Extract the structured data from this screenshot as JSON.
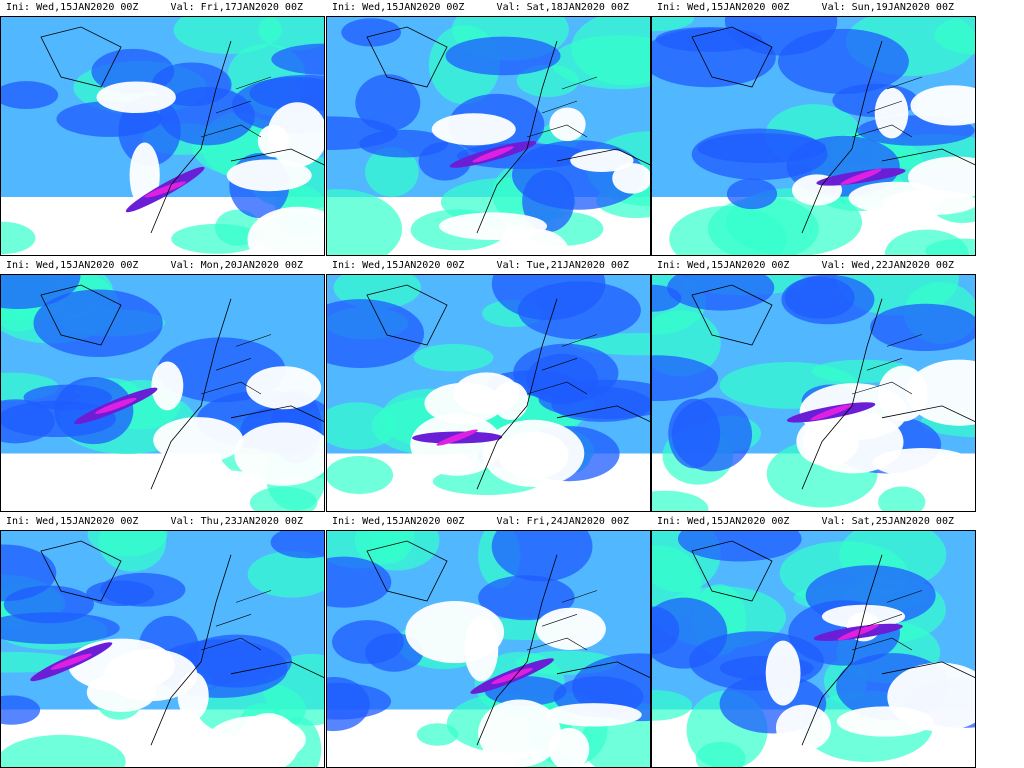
{
  "panels": [
    {
      "ini": "Ini: Wed,15JAN2020 00Z",
      "val": "Val: Fri,17JAN2020 00Z"
    },
    {
      "ini": "Ini: Wed,15JAN2020 00Z",
      "val": "Val: Sat,18JAN2020 00Z"
    },
    {
      "ini": "Ini: Wed,15JAN2020 00Z",
      "val": "Val: Sun,19JAN2020 00Z"
    },
    {
      "ini": "Ini: Wed,15JAN2020 00Z",
      "val": "Val: Mon,20JAN2020 00Z"
    },
    {
      "ini": "Ini: Wed,15JAN2020 00Z",
      "val": "Val: Tue,21JAN2020 00Z"
    },
    {
      "ini": "Ini: Wed,15JAN2020 00Z",
      "val": "Val: Wed,22JAN2020 00Z"
    },
    {
      "ini": "Ini: Wed,15JAN2020 00Z",
      "val": "Val: Thu,23JAN2020 00Z"
    },
    {
      "ini": "Ini: Wed,15JAN2020 00Z",
      "val": "Val: Fri,24JAN2020 00Z"
    },
    {
      "ini": "Ini: Wed,15JAN2020 00Z",
      "val": "Val: Sat,25JAN2020 00Z"
    }
  ]
}
